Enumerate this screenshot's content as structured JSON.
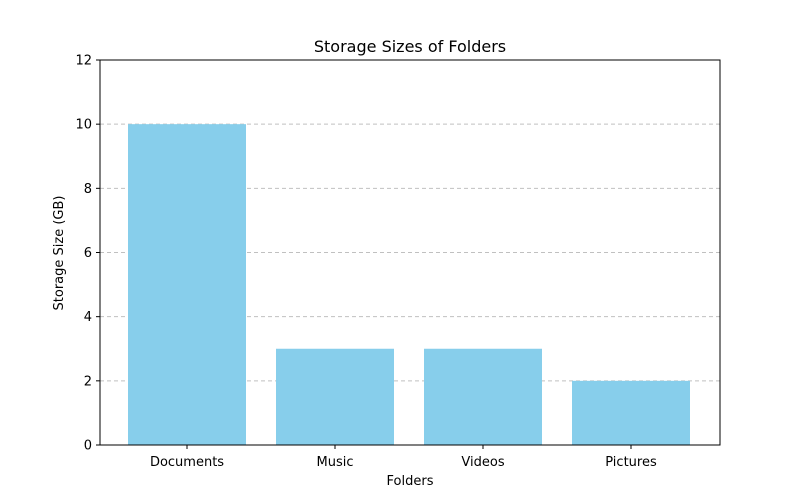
{
  "chart_data": {
    "type": "bar",
    "title": "Storage Sizes of Folders",
    "xlabel": "Folders",
    "ylabel": "Storage Size (GB)",
    "categories": [
      "Documents",
      "Music",
      "Videos",
      "Pictures"
    ],
    "values": [
      10,
      3,
      3,
      2
    ],
    "ylim": [
      0,
      12
    ],
    "yticks": [
      0,
      2,
      4,
      6,
      8,
      10,
      12
    ],
    "grid": "y-axis, dashed",
    "bar_color": "#87ceeb",
    "grid_color": "#c0c0c0",
    "axis_color": "#000000",
    "background_color": "#ffffff"
  }
}
